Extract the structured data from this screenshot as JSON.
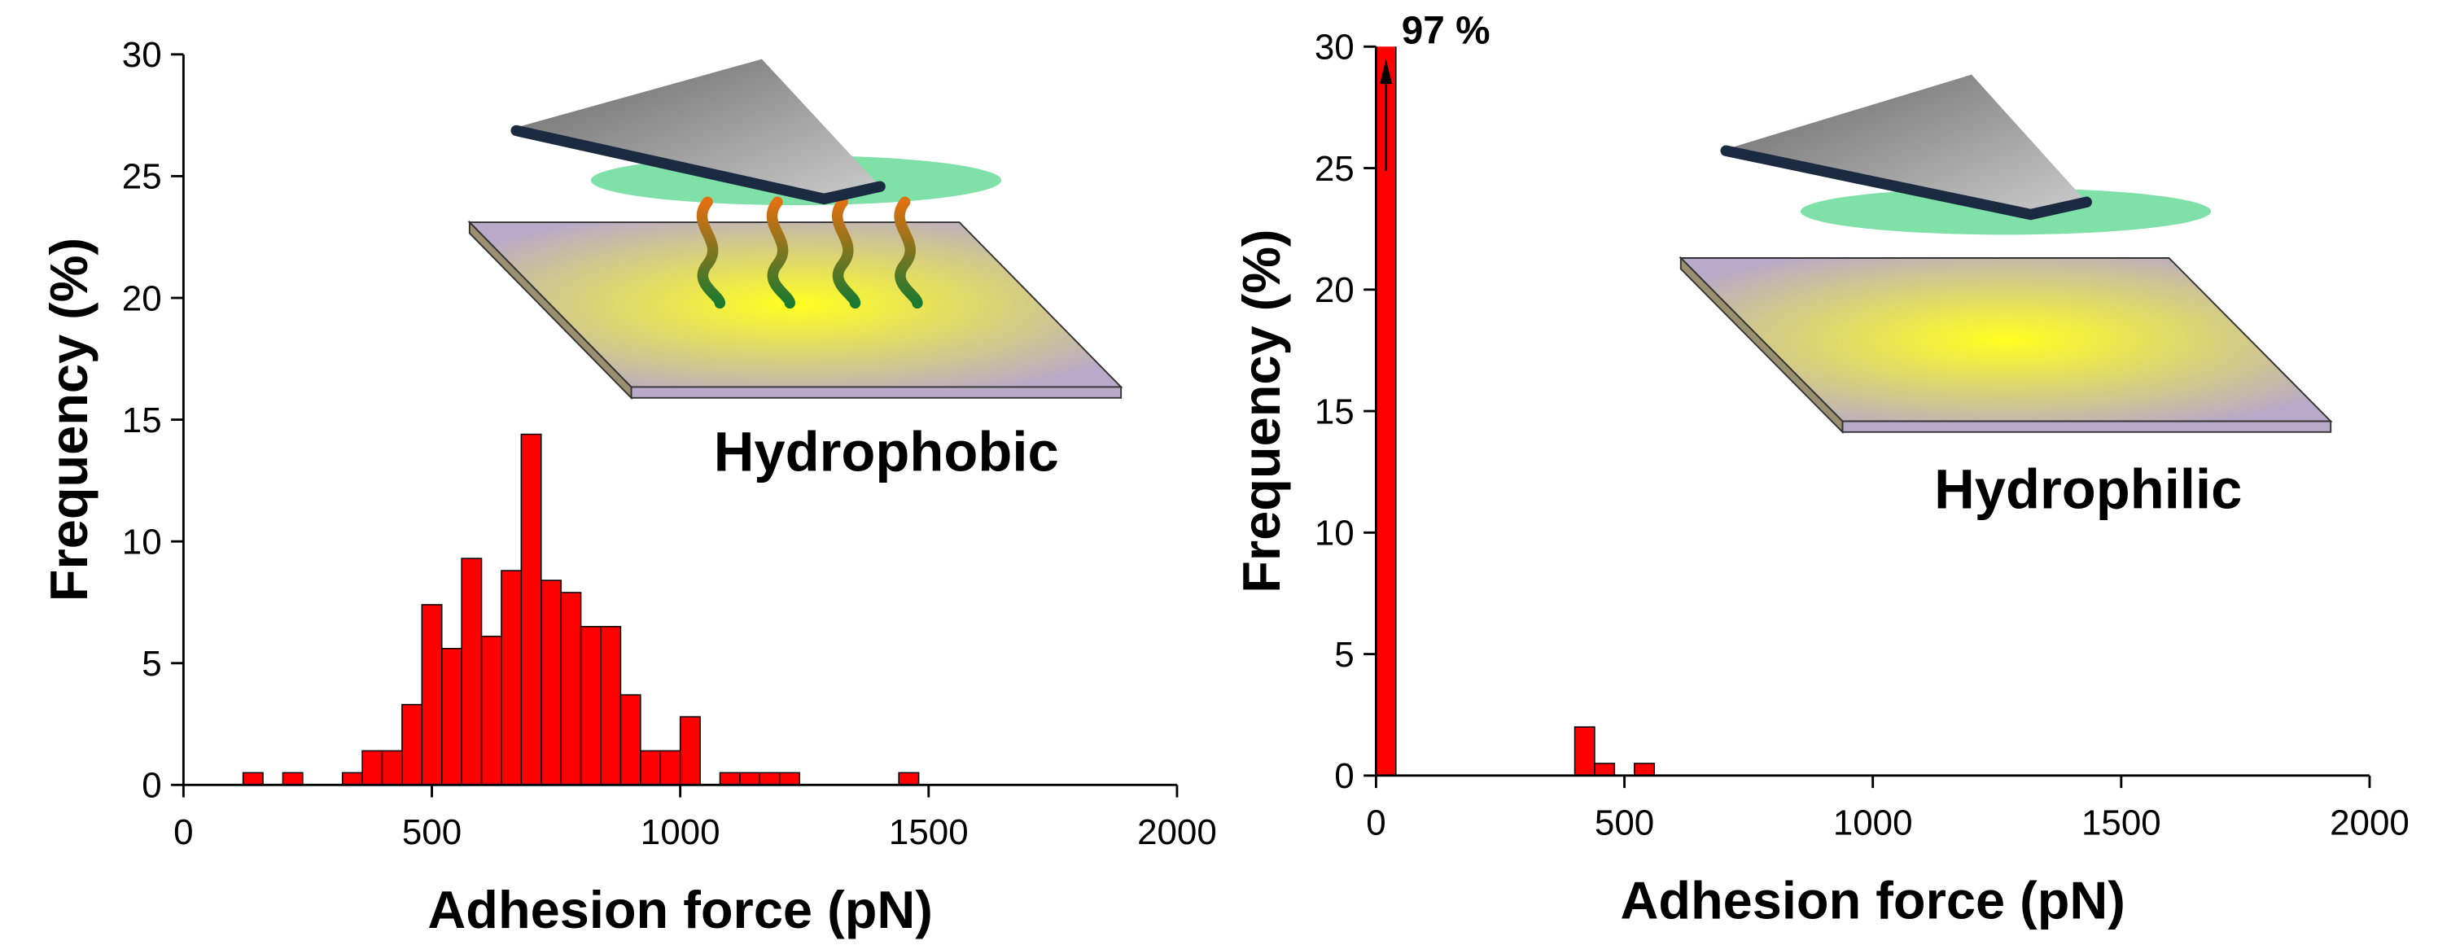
{
  "chart_data": [
    {
      "type": "histogram",
      "xlabel": "Adhesion force (pN)",
      "ylabel": "Frequency (%)",
      "annotation": "Hydrophobic",
      "bins": [
        120,
        160,
        200,
        240,
        280,
        320,
        360,
        400,
        440,
        480,
        520,
        560,
        600,
        640,
        680,
        720,
        760,
        800,
        840,
        880,
        920,
        960,
        1000,
        1040,
        1080,
        1120,
        1160,
        1200,
        1240,
        1280,
        1320,
        1360,
        1400,
        1440,
        1480
      ],
      "values": [
        0.5,
        0,
        0.5,
        0,
        0,
        0.5,
        1.4,
        1.4,
        3.3,
        7.4,
        5.6,
        9.3,
        6.1,
        8.8,
        14.4,
        8.4,
        7.9,
        6.5,
        6.5,
        3.7,
        1.4,
        1.4,
        2.8,
        0,
        0.5,
        0.5,
        0.5,
        0.5,
        0,
        0,
        0,
        0,
        0,
        0.5
      ],
      "color": "#ff0000",
      "xlim": [
        0,
        2000
      ],
      "xticks": [
        0,
        500,
        1000,
        1500,
        2000
      ],
      "ylim": [
        0,
        30
      ],
      "yticks": [
        0,
        5,
        10,
        15,
        20,
        25,
        30
      ]
    },
    {
      "type": "histogram",
      "xlabel": "Adhesion force (pN)",
      "ylabel": "Frequency (%)",
      "annotation": "Hydrophilic",
      "bins": [
        0,
        40,
        80,
        120,
        160,
        200,
        240,
        280,
        320,
        360,
        400,
        440,
        480,
        520,
        560
      ],
      "values": [
        97,
        0,
        0,
        0,
        0,
        0,
        0,
        0,
        0,
        0,
        2,
        0.5,
        0,
        0.5
      ],
      "value_labels": [
        "97 %",
        null,
        null,
        null,
        null,
        null,
        null,
        null,
        null,
        null,
        null,
        null,
        null,
        null
      ],
      "color": "#ff0000",
      "xlim": [
        0,
        2000
      ],
      "xticks": [
        0,
        500,
        1000,
        1500,
        2000
      ],
      "ylim": [
        0,
        30
      ],
      "yticks": [
        0,
        5,
        10,
        15,
        20,
        25,
        30
      ]
    }
  ]
}
